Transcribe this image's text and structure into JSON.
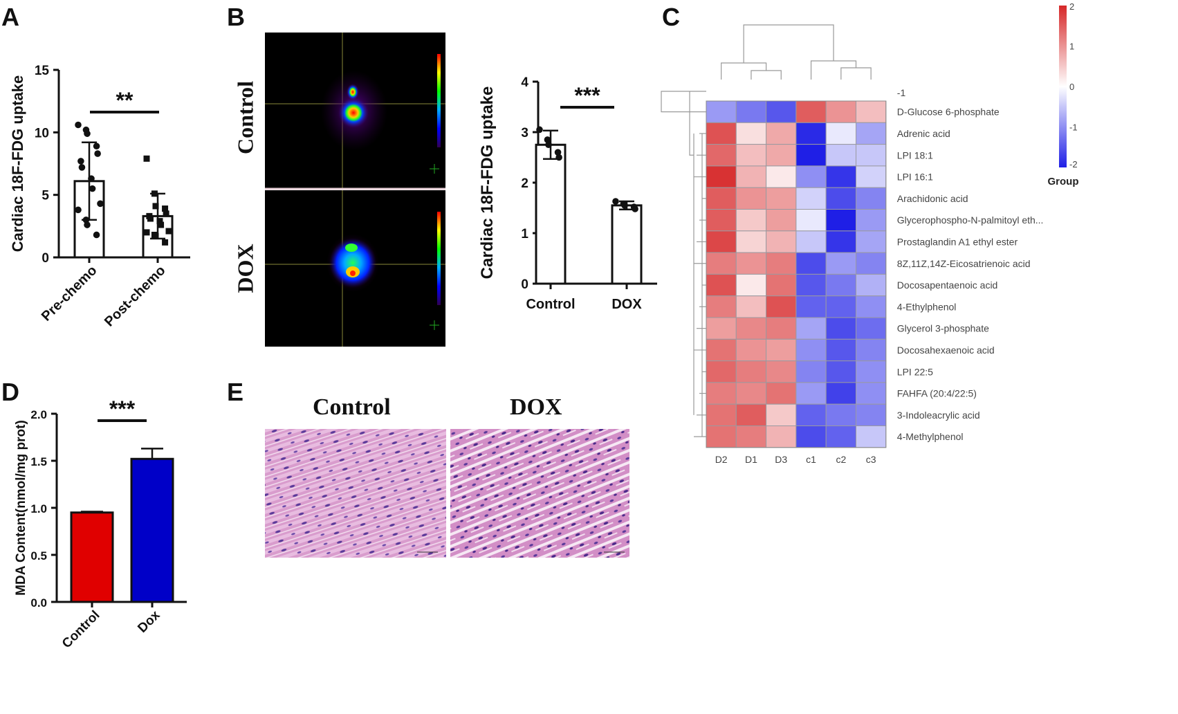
{
  "panels": {
    "a": "A",
    "b": "B",
    "c": "C",
    "d": "D",
    "e": "E"
  },
  "chart_data": [
    {
      "id": "A",
      "type": "bar",
      "ylabel": "Cardiac 18F-FDG uptake",
      "categories": [
        "Pre-chemo",
        "Post-chemo"
      ],
      "values": [
        6.1,
        3.3
      ],
      "errors": [
        3.1,
        1.8
      ],
      "points": [
        [
          10.6,
          10.2,
          9.9,
          8.9,
          8.3,
          7.7,
          7.2,
          6.3,
          5.5,
          4.3,
          3.8,
          3.0,
          2.6,
          1.8
        ],
        [
          7.9,
          5.1,
          4.1,
          3.9,
          3.5,
          3.3,
          3.1,
          2.9,
          2.6,
          2.1,
          2.0,
          1.8,
          1.7,
          1.2
        ]
      ],
      "ylim": [
        0,
        15
      ],
      "yticks": [
        0,
        5,
        10,
        15
      ],
      "significance": "**",
      "marker_colors": [
        "#111111",
        "#111111"
      ]
    },
    {
      "id": "B",
      "type": "bar",
      "ylabel": "Cardiac 18F-FDG uptake",
      "categories": [
        "Control",
        "DOX"
      ],
      "values": [
        2.75,
        1.55
      ],
      "errors": [
        0.28,
        0.08
      ],
      "points": [
        [
          3.05,
          2.85,
          2.75,
          2.6,
          2.5
        ],
        [
          1.63,
          1.58,
          1.55,
          1.52,
          1.48
        ]
      ],
      "ylim": [
        0,
        4
      ],
      "yticks": [
        0,
        1,
        2,
        3,
        4
      ],
      "significance": "***"
    },
    {
      "id": "C",
      "type": "heatmap",
      "columns": [
        "D2",
        "D1",
        "D3",
        "c1",
        "c2",
        "c3"
      ],
      "top_label": "-1",
      "rows": [
        "D-Glucose 6-phosphate",
        "Adrenic acid",
        "LPI 18:1",
        "LPI 16:1",
        "Arachidonic acid",
        "Glycerophospho-N-palmitoyl eth...",
        "Prostaglandin A1 ethyl ester",
        "8Z,11Z,14Z-Eicosatrienoic acid",
        "Docosapentaenoic acid",
        "4-Ethylphenol",
        "Glycerol 3-phosphate",
        "Docosahexaenoic acid",
        "LPI 22:5",
        "FAHFA (20:4/22:5)",
        "3-Indoleacrylic acid",
        "4-Methylphenol"
      ],
      "values": [
        [
          -0.9,
          -1.2,
          -1.5,
          1.5,
          1.0,
          0.6
        ],
        [
          1.6,
          0.3,
          0.8,
          -1.9,
          -0.2,
          -0.8
        ],
        [
          1.4,
          0.6,
          0.8,
          -2.0,
          -0.5,
          -0.5
        ],
        [
          1.9,
          0.7,
          0.2,
          -1.0,
          -1.8,
          -0.4
        ],
        [
          1.5,
          1.0,
          0.9,
          -0.4,
          -1.6,
          -1.1
        ],
        [
          1.5,
          0.5,
          0.9,
          -0.2,
          -2.0,
          -0.9
        ],
        [
          1.7,
          0.4,
          0.7,
          -0.5,
          -1.8,
          -0.8
        ],
        [
          1.2,
          1.0,
          1.2,
          -1.6,
          -0.9,
          -1.1
        ],
        [
          1.6,
          0.2,
          1.3,
          -1.5,
          -1.2,
          -0.7
        ],
        [
          1.2,
          0.6,
          1.6,
          -1.4,
          -1.4,
          -1.0
        ],
        [
          0.9,
          1.1,
          1.2,
          -0.8,
          -1.6,
          -1.3
        ],
        [
          1.3,
          1.0,
          0.9,
          -1.0,
          -1.5,
          -1.1
        ],
        [
          1.4,
          1.2,
          1.1,
          -1.1,
          -1.5,
          -1.0
        ],
        [
          1.2,
          1.1,
          1.3,
          -0.9,
          -1.7,
          -1.0
        ],
        [
          1.3,
          1.5,
          0.5,
          -1.4,
          -1.2,
          -1.1
        ],
        [
          1.3,
          1.2,
          0.7,
          -1.6,
          -1.4,
          -0.5
        ]
      ],
      "legend": {
        "title": "Group",
        "ticks": [
          "2",
          "1",
          "0",
          "-1",
          "-2"
        ],
        "max": 2,
        "min": -2
      },
      "colors": {
        "high": "#d62728",
        "mid": "#ffffff",
        "low": "#1f1fe6"
      }
    },
    {
      "id": "D",
      "type": "bar",
      "ylabel": "MDA Content(nmol/mg prot)",
      "categories": [
        "Control",
        "Dox"
      ],
      "values": [
        0.95,
        1.52
      ],
      "errors": [
        0.01,
        0.11
      ],
      "colors": [
        "#e00000",
        "#0000c8"
      ],
      "ylim": [
        0,
        2.0
      ],
      "yticks": [
        "0.0",
        "0.5",
        "1.0",
        "1.5",
        "2.0"
      ],
      "significance": "***"
    }
  ],
  "images": {
    "b_row_labels": [
      "Control",
      "DOX"
    ],
    "e_col_labels": [
      "Control",
      "DOX"
    ]
  }
}
